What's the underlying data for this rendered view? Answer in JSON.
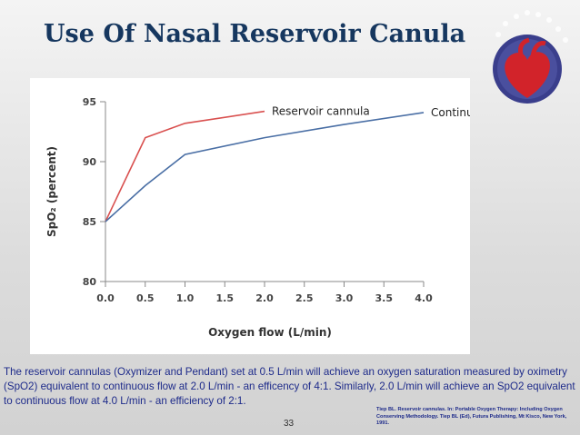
{
  "slide": {
    "title": "Use Of Nasal Reservoir Canula",
    "caption": "The reservoir cannulas (Oxymizer and Pendant) set at 0.5 L/min will achieve an oxygen saturation measured by oximetry (SpO2) equivalent to continuous flow at 2.0 L/min - an efficency of 4:1. Similarly, 2.0 L/min will achieve an SpO2 equivalent to continuous flow at 4.0 L/min - an efficiency of 2:1.",
    "slide_number": "33",
    "reference": "Tiep BL. Reservoir cannulas. In: Portable Oxygen Therapy: Including Oxygen Conserving Methodology. Tiep BL (Ed), Futura Publishing, Mt Kisco, New York, 1991."
  },
  "colors": {
    "title": "#16375f",
    "caption": "#1d2a8a",
    "reservoir_series": "#d9504f",
    "continuous_series": "#4a6fa5",
    "axis": "#888888",
    "logo_ring": "#3a3e8c",
    "logo_heart": "#d2232a"
  },
  "chart_data": {
    "type": "line",
    "xlabel": "Oxygen flow (L/min)",
    "ylabel": "SpO₂ (percent)",
    "xlim": [
      0,
      4
    ],
    "ylim": [
      80,
      95
    ],
    "x_ticks": [
      "0.0",
      "0.5",
      "1.0",
      "1.5",
      "2.0",
      "2.5",
      "3.0",
      "3.5",
      "4.0"
    ],
    "y_ticks": [
      "80",
      "85",
      "90",
      "95"
    ],
    "grid": false,
    "legend": "inline labels at line ends",
    "series": [
      {
        "name": "Reservoir cannula",
        "color": "#d9504f",
        "x": [
          0,
          0.5,
          1.0,
          2.0
        ],
        "y": [
          85,
          92.0,
          93.2,
          94.2
        ]
      },
      {
        "name": "Continuous flow",
        "color": "#4a6fa5",
        "x": [
          0,
          0.5,
          1.0,
          2.0,
          3.0,
          4.0
        ],
        "y": [
          85,
          88.0,
          90.6,
          92.0,
          93.1,
          94.1
        ]
      }
    ]
  }
}
